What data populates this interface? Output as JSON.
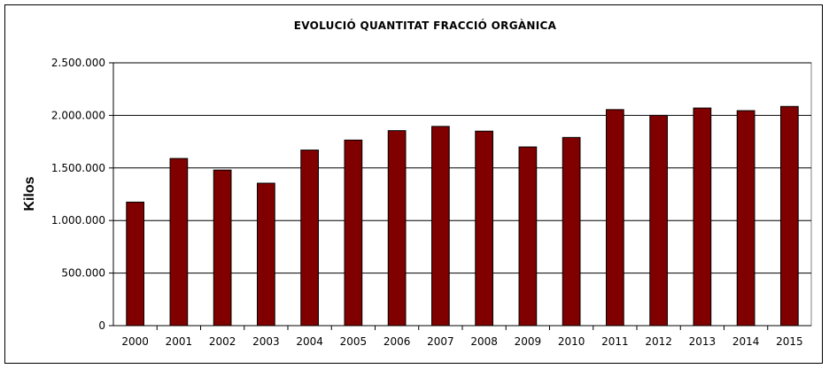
{
  "chart_data": {
    "type": "bar",
    "title": "EVOLUCIÓ  QUANTITAT  FRACCIÓ  ORGÀNICA",
    "xlabel": "",
    "ylabel": "Kilos",
    "categories": [
      "2000",
      "2001",
      "2002",
      "2003",
      "2004",
      "2005",
      "2006",
      "2007",
      "2008",
      "2009",
      "2010",
      "2011",
      "2012",
      "2013",
      "2014",
      "2015"
    ],
    "values": [
      1175000,
      1590000,
      1480000,
      1355000,
      1670000,
      1765000,
      1855000,
      1895000,
      1850000,
      1700000,
      1790000,
      2055000,
      2000000,
      2070000,
      2045000,
      2085000
    ],
    "ylim": [
      0,
      2500000
    ],
    "yticks": [
      0,
      500000,
      1000000,
      1500000,
      2000000,
      2500000
    ],
    "ytick_labels": [
      "0",
      "500.000",
      "1.000.000",
      "1.500.000",
      "2.000.000",
      "2.500.000"
    ],
    "grid": true,
    "bar_color": "#800000",
    "legend": "none"
  }
}
